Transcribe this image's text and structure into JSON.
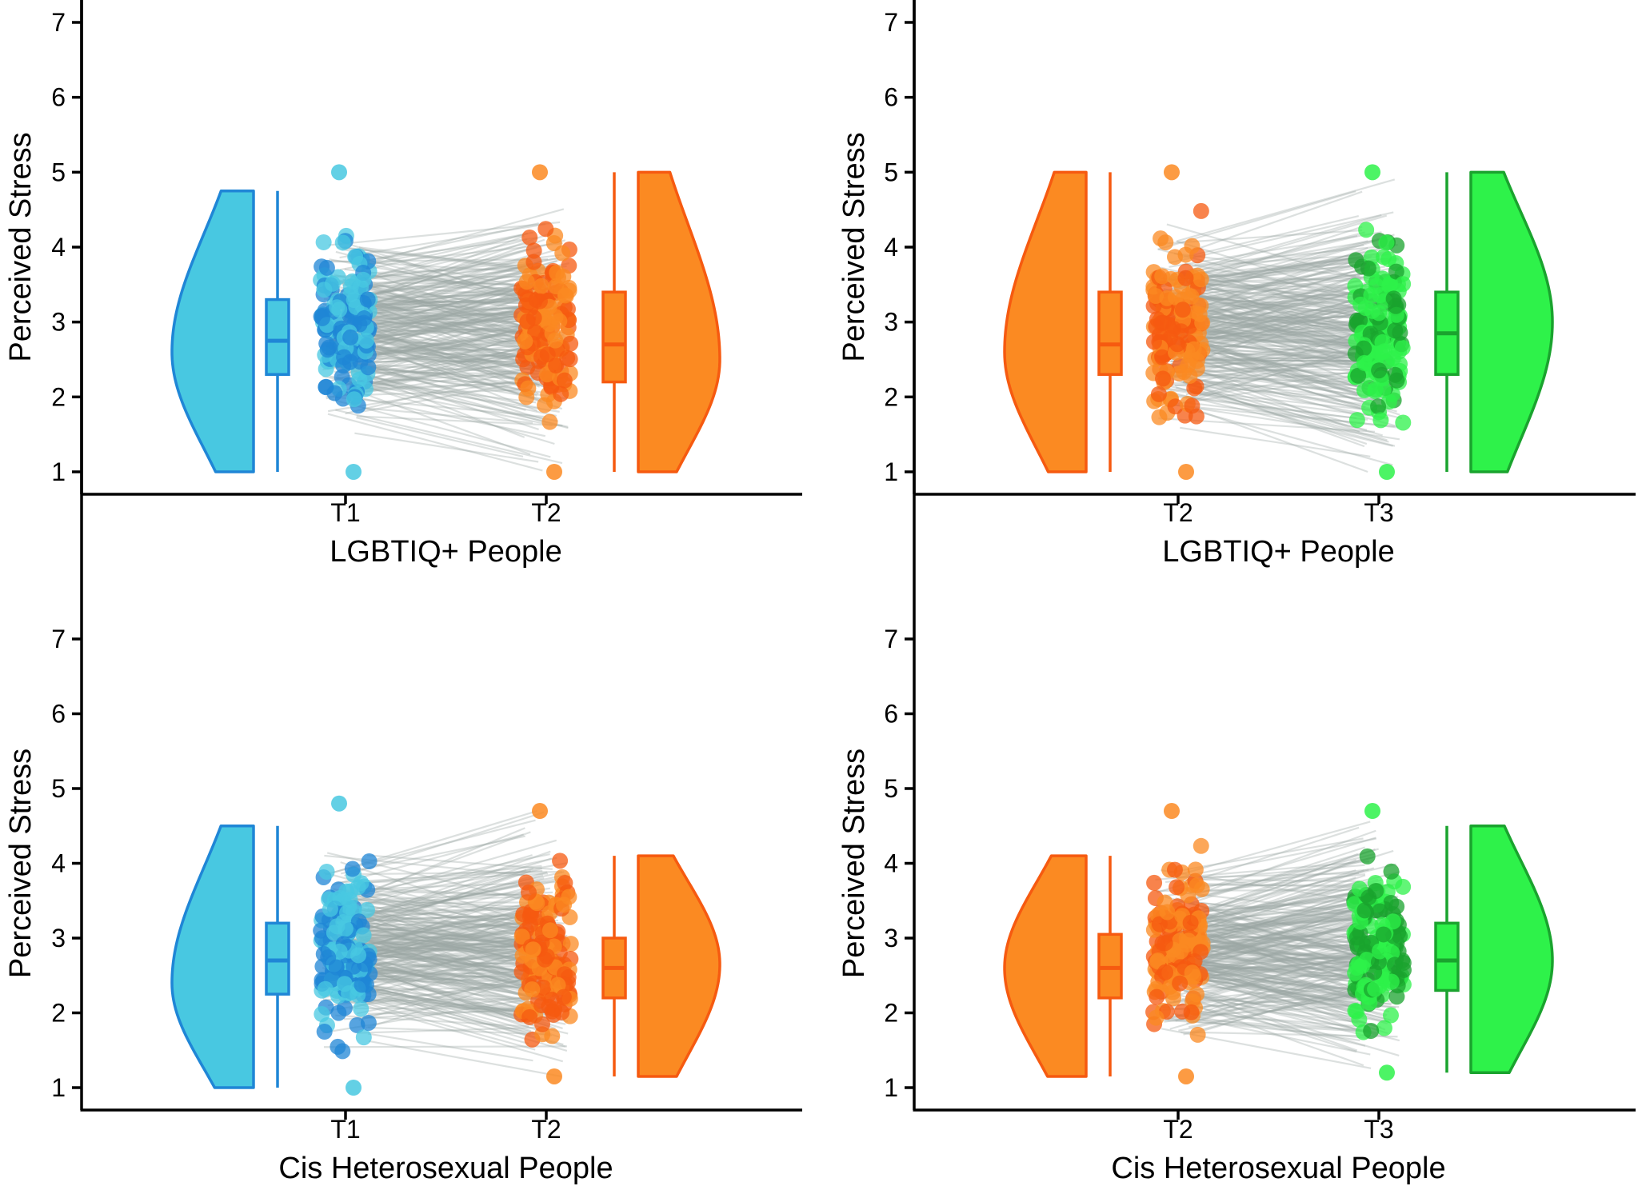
{
  "chart_data": [
    {
      "type": "raincloud",
      "panel": "top-left",
      "xlabel": "LGBTIQ+ People",
      "ylabel": "Perceived Stress",
      "ylim": [
        1,
        7
      ],
      "yticks": [
        "1",
        "2",
        "3",
        "4",
        "5",
        "6",
        "7"
      ],
      "categories": [
        "T1",
        "T2"
      ],
      "series": [
        {
          "name": "T1",
          "color": "#48c8e1",
          "dark": "#1f86d6",
          "min": 1.0,
          "q1": 2.3,
          "median": 2.75,
          "q3": 3.3,
          "max": 4.75,
          "point_max": 5.0,
          "mode": 2.6
        },
        {
          "name": "T2",
          "color": "#fb8a22",
          "dark": "#f65a10",
          "min": 1.0,
          "q1": 2.2,
          "median": 2.7,
          "q3": 3.4,
          "max": 5.0,
          "point_max": 5.0,
          "mode": 2.5
        }
      ]
    },
    {
      "type": "raincloud",
      "panel": "top-right",
      "xlabel": "LGBTIQ+ People",
      "ylabel": "Perceived Stress",
      "ylim": [
        1,
        7
      ],
      "yticks": [
        "1",
        "2",
        "3",
        "4",
        "5",
        "6",
        "7"
      ],
      "categories": [
        "T2",
        "T3"
      ],
      "series": [
        {
          "name": "T2",
          "color": "#fb8a22",
          "dark": "#f65a10",
          "min": 1.0,
          "q1": 2.3,
          "median": 2.7,
          "q3": 3.4,
          "max": 5.0,
          "point_max": 5.0,
          "mode": 2.6
        },
        {
          "name": "T3",
          "color": "#2ef24a",
          "dark": "#1aa32e",
          "min": 1.0,
          "q1": 2.3,
          "median": 2.85,
          "q3": 3.4,
          "max": 5.0,
          "point_max": 5.0,
          "mode": 3.0
        }
      ]
    },
    {
      "type": "raincloud",
      "panel": "bottom-left",
      "xlabel": "Cis Heterosexual People",
      "ylabel": "Perceived Stress",
      "ylim": [
        1,
        7
      ],
      "yticks": [
        "1",
        "2",
        "3",
        "4",
        "5",
        "6",
        "7"
      ],
      "categories": [
        "T1",
        "T2"
      ],
      "series": [
        {
          "name": "T1",
          "color": "#48c8e1",
          "dark": "#1f86d6",
          "min": 1.0,
          "q1": 2.25,
          "median": 2.7,
          "q3": 3.2,
          "max": 4.5,
          "point_max": 4.8,
          "mode": 2.4
        },
        {
          "name": "T2",
          "color": "#fb8a22",
          "dark": "#f65a10",
          "min": 1.15,
          "q1": 2.2,
          "median": 2.6,
          "q3": 3.0,
          "max": 4.1,
          "point_max": 4.7,
          "mode": 2.65
        }
      ]
    },
    {
      "type": "raincloud",
      "panel": "bottom-right",
      "xlabel": "Cis Heterosexual People",
      "ylabel": "Perceived Stress",
      "ylim": [
        1,
        7
      ],
      "yticks": [
        "1",
        "2",
        "3",
        "4",
        "5",
        "6",
        "7"
      ],
      "categories": [
        "T2",
        "T3"
      ],
      "series": [
        {
          "name": "T2",
          "color": "#fb8a22",
          "dark": "#f65a10",
          "min": 1.15,
          "q1": 2.2,
          "median": 2.6,
          "q3": 3.05,
          "max": 4.1,
          "point_max": 4.7,
          "mode": 2.6
        },
        {
          "name": "T3",
          "color": "#2ef24a",
          "dark": "#1aa32e",
          "min": 1.2,
          "q1": 2.3,
          "median": 2.7,
          "q3": 3.2,
          "max": 4.5,
          "point_max": 4.7,
          "mode": 2.7
        }
      ]
    }
  ],
  "colors": {
    "line": "#9aa6a3",
    "axis": "#000000"
  }
}
